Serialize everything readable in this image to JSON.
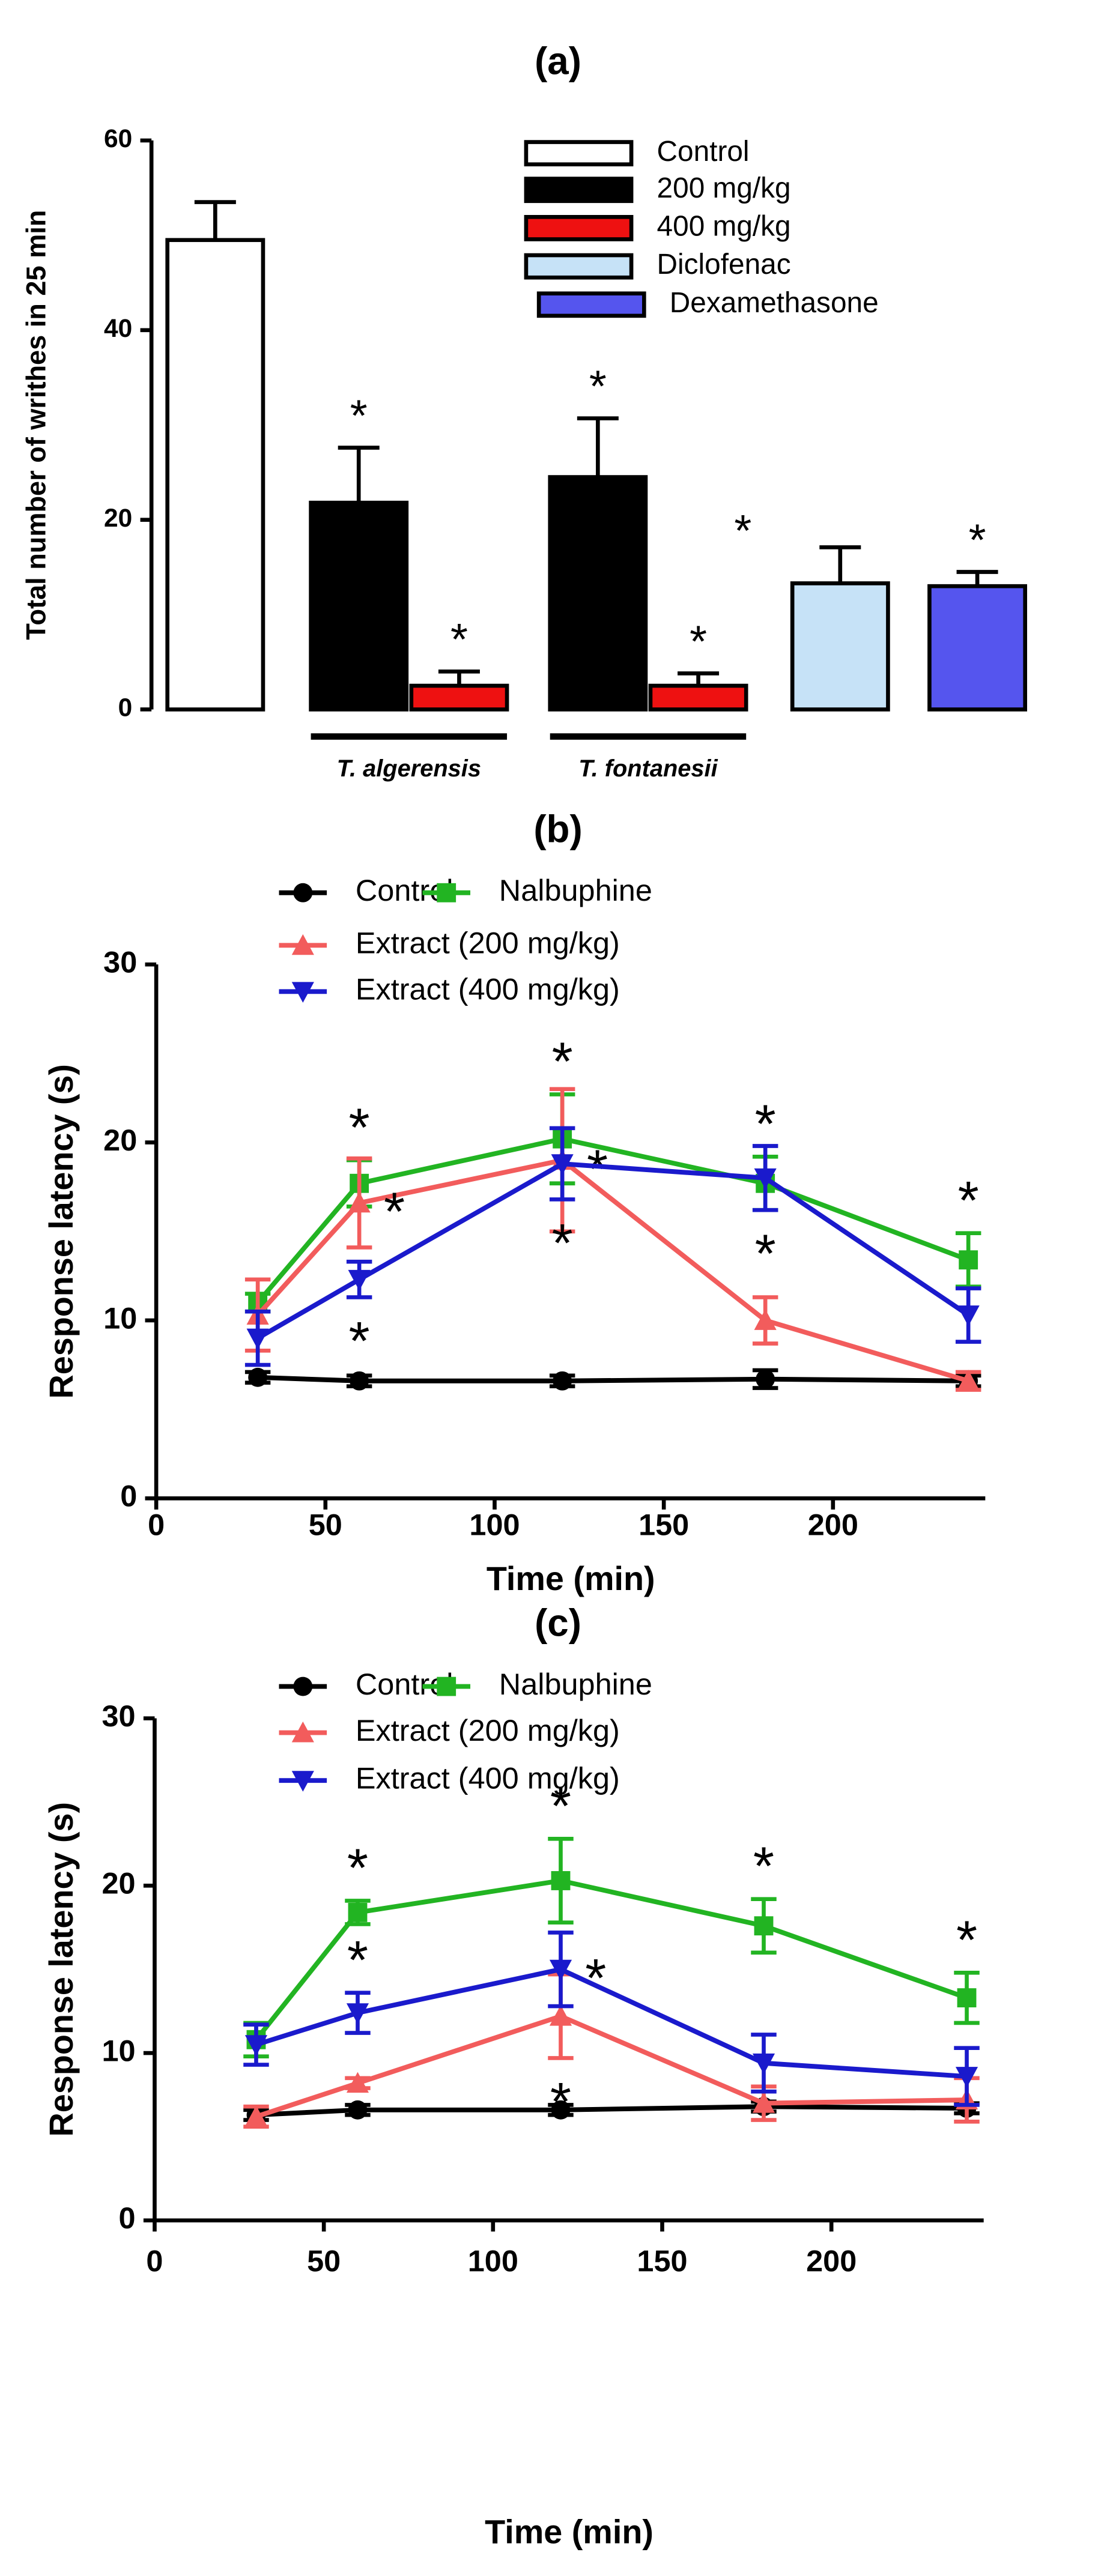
{
  "chart_data": [
    {
      "type": "bar",
      "title": "(a)",
      "ylabel": "Total number of writhes in 25 min",
      "values": [
        49.5,
        21.8,
        2.5,
        24.5,
        2.5,
        13.3,
        13
      ],
      "errors": [
        4,
        5.8,
        1.5,
        6.2,
        1.3,
        3.8,
        1.5
      ],
      "colors": [
        "#ffffff",
        "#000000",
        "#ee1111",
        "#c6e2f7",
        "#5555ee"
      ],
      "bar_colors": [
        "#ffffff",
        "#000000",
        "#ee1111",
        "#000000",
        "#ee1111",
        "#c6e2f7",
        "#5555ee"
      ],
      "markers": [
        null,
        "*",
        "*",
        "*",
        "*",
        "*",
        "*"
      ],
      "legend": [
        "Control",
        "200 mg/kg",
        "400 mg/kg",
        "Diclofenac",
        "Dexamethasone"
      ],
      "groups": [
        "T. algerensis",
        "T. fontanesii"
      ],
      "ylim": [
        0,
        60
      ],
      "yticks": [
        0,
        20,
        40,
        60
      ]
    },
    {
      "type": "line",
      "title": "(b)",
      "xlabel": "Time (min)",
      "ylabel": "Response latency (s)",
      "x": [
        30,
        60,
        120,
        180,
        240
      ],
      "xlim": [
        0,
        245
      ],
      "xticks": [
        0,
        50,
        100,
        150,
        200
      ],
      "ylim": [
        0,
        30
      ],
      "yticks": [
        0,
        10,
        20,
        30
      ],
      "series": [
        {
          "name": "Control",
          "color": "#000000",
          "marker": "circle",
          "values": [
            6.8,
            6.6,
            6.6,
            6.7,
            6.6
          ],
          "errors": [
            0.3,
            0.3,
            0.3,
            0.5,
            0.3
          ],
          "markers": [
            null,
            null,
            null,
            null,
            null
          ]
        },
        {
          "name": "Nalbuphine",
          "color": "#22b422",
          "marker": "square",
          "values": [
            11,
            17.7,
            20.2,
            17.7,
            13.4
          ],
          "errors": [
            0.5,
            1.3,
            2.5,
            1.5,
            1.5
          ],
          "markers": [
            null,
            "*",
            "*",
            "*",
            "*"
          ]
        },
        {
          "name": "Extract (200 mg/kg)",
          "color": "#f25c5c",
          "marker": "triangle-up",
          "values": [
            10.3,
            16.6,
            19,
            10,
            6.6
          ],
          "errors": [
            2,
            2.5,
            4,
            1.3,
            0.5
          ],
          "markers": [
            null,
            "*",
            "*",
            null,
            null
          ]
        },
        {
          "name": "Extract (400 mg/kg)",
          "color": "#1a1acc",
          "marker": "triangle-down",
          "values": [
            9,
            12.3,
            18.8,
            18,
            10.3
          ],
          "errors": [
            1.5,
            1,
            2,
            1.8,
            1.5
          ],
          "markers": [
            null,
            "*",
            "*",
            "*",
            null
          ]
        }
      ]
    },
    {
      "type": "line",
      "title": "(c)",
      "xlabel": "Time (min)",
      "ylabel": "Response latency (s)",
      "x": [
        30,
        60,
        120,
        180,
        240
      ],
      "xlim": [
        0,
        245
      ],
      "xticks": [
        0,
        50,
        100,
        150,
        200
      ],
      "ylim": [
        0,
        30
      ],
      "yticks": [
        0,
        10,
        20,
        30
      ],
      "series": [
        {
          "name": "Control",
          "color": "#000000",
          "marker": "circle",
          "values": [
            6.3,
            6.6,
            6.6,
            6.8,
            6.7
          ],
          "errors": [
            0.3,
            0.3,
            0.3,
            0.3,
            0.3
          ],
          "markers": [
            null,
            null,
            null,
            null,
            null
          ]
        },
        {
          "name": "Nalbuphine",
          "color": "#22b422",
          "marker": "square",
          "values": [
            10.8,
            18.4,
            20.3,
            17.6,
            13.3
          ],
          "errors": [
            1,
            0.7,
            2.5,
            1.6,
            1.5
          ],
          "markers": [
            null,
            "*",
            "*",
            "*",
            "*"
          ]
        },
        {
          "name": "Extract (200 mg/kg)",
          "color": "#f25c5c",
          "marker": "triangle-up",
          "values": [
            6.2,
            8.2,
            12.2,
            7,
            7.2
          ],
          "errors": [
            0.6,
            0.3,
            2.5,
            1,
            1.3
          ],
          "markers": [
            null,
            null,
            "*",
            null,
            null
          ]
        },
        {
          "name": "Extract (400 mg/kg)",
          "color": "#1a1acc",
          "marker": "triangle-down",
          "values": [
            10.5,
            12.4,
            15,
            9.4,
            8.6
          ],
          "errors": [
            1.2,
            1.2,
            2.2,
            1.7,
            1.7
          ],
          "markers": [
            null,
            "*",
            "*",
            null,
            null
          ]
        }
      ]
    }
  ]
}
